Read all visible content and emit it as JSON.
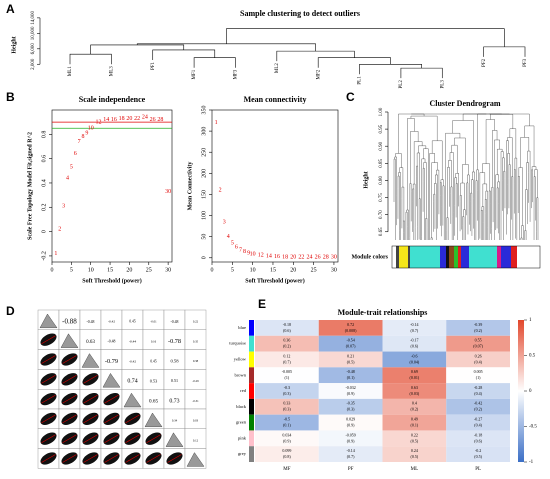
{
  "chart_data": [
    {
      "type": "dendrogram",
      "panel": "A",
      "title": "Sample clustering to detect outliers",
      "ylabel": "Height",
      "ylim": [
        0,
        15000
      ],
      "yticks": [
        {
          "value": 2000,
          "label": "2,000"
        },
        {
          "value": 6000,
          "label": "6,000"
        },
        {
          "value": 10000,
          "label": "10,000"
        },
        {
          "value": 14000,
          "label": "14,000"
        }
      ],
      "leaves": [
        "ML1",
        "ML3",
        "PF1",
        "MF1",
        "MF3",
        "ML2",
        "MF2",
        "PL1",
        "PL2",
        "PL3",
        "PF2",
        "PF3"
      ],
      "merges": [
        [
          -9,
          -10,
          1000
        ],
        [
          -8,
          1,
          2000
        ],
        [
          -7,
          2,
          3700
        ],
        [
          -6,
          3,
          5400
        ],
        [
          -4,
          -5,
          3700
        ],
        [
          -3,
          5,
          5700
        ],
        [
          -1,
          -2,
          4600
        ],
        [
          7,
          6,
          7000
        ],
        [
          8,
          4,
          7300
        ],
        [
          -11,
          -12,
          6500
        ],
        [
          9,
          10,
          11200
        ]
      ]
    },
    {
      "type": "text-scatter",
      "panel": "B",
      "title": "Scale independence",
      "xlabel": "Soft Threshold (power)",
      "ylabel": "Scale Free Topology Model Fit,signed R^2",
      "x": [
        1,
        2,
        3,
        4,
        5,
        6,
        7,
        8,
        9,
        10,
        12,
        14,
        16,
        18,
        20,
        22,
        24,
        26,
        28,
        30
      ],
      "values": [
        -0.18,
        0.02,
        0.21,
        0.44,
        0.53,
        0.64,
        0.74,
        0.78,
        0.81,
        0.85,
        0.9,
        0.92,
        0.92,
        0.93,
        0.93,
        0.93,
        0.94,
        0.92,
        0.92,
        0.33
      ],
      "color": "#e00000",
      "xlim": [
        0,
        31
      ],
      "xticks": [
        0,
        5,
        10,
        15,
        20,
        25,
        30
      ],
      "ylim": [
        -0.25,
        1.0
      ],
      "yticks": [
        -0.2,
        0,
        0.2,
        0.4,
        0.6,
        0.8
      ],
      "hlines": [
        {
          "value": 0.9,
          "color": "#e00000"
        },
        {
          "value": 0.85,
          "color": "#22b022"
        }
      ]
    },
    {
      "type": "text-scatter",
      "title": "Mean connectivity",
      "xlabel": "Soft Threshold (power)",
      "ylabel": "Mean Connectivity",
      "x": [
        1,
        2,
        3,
        4,
        5,
        6,
        7,
        8,
        9,
        10,
        12,
        14,
        16,
        18,
        20,
        22,
        24,
        26,
        28,
        30
      ],
      "values": [
        320,
        160,
        85,
        50,
        35,
        25,
        18,
        14,
        11,
        9,
        6,
        4,
        3,
        2,
        2,
        1,
        1,
        1,
        1,
        1
      ],
      "color": "#e00000",
      "xlim": [
        0,
        31
      ],
      "xticks": [
        0,
        5,
        10,
        15,
        20,
        25,
        30
      ],
      "ylim": [
        -10,
        350
      ],
      "yticks": [
        0,
        50,
        100,
        150,
        200,
        250,
        300,
        350
      ]
    },
    {
      "type": "gene-dendrogram",
      "panel": "C",
      "title": "Cluster Dendrogram",
      "ylabel": "Height",
      "strip_label": "Module colors",
      "ylim": [
        0.62,
        1.0
      ],
      "yticks": [
        0.65,
        {
          "value": 0.7,
          "label": "0.70"
        },
        0.75,
        {
          "value": 0.8,
          "label": "0.80"
        },
        0.85,
        {
          "value": 0.9,
          "label": "0.90"
        },
        0.95,
        {
          "value": 1.0,
          "label": "1.00"
        }
      ]
    },
    {
      "type": "correlation-matrix",
      "panel": "D",
      "upper": [
        [
          null,
          -0.88,
          -0.48,
          -0.42,
          0.45,
          -0.01,
          -0.48,
          0.22
        ],
        [
          null,
          null,
          0.63,
          -0.48,
          -0.44,
          0.16,
          -0.78,
          0.35
        ],
        [
          null,
          null,
          null,
          -0.79,
          -0.42,
          0.45,
          0.58,
          0.38
        ],
        [
          null,
          null,
          null,
          null,
          0.74,
          0.53,
          0.51,
          -0.29
        ],
        [
          null,
          null,
          null,
          null,
          null,
          0.65,
          0.73,
          -0.31
        ],
        [
          null,
          null,
          null,
          null,
          null,
          null,
          0.34,
          0.03
        ],
        [
          null,
          null,
          null,
          null,
          null,
          null,
          null,
          0.12
        ],
        [
          null,
          null,
          null,
          null,
          null,
          null,
          null,
          null
        ]
      ]
    },
    {
      "type": "heatmap",
      "panel": "E",
      "title": "Module-trait relationships",
      "rows": [
        "blue",
        "turquoise",
        "yellow",
        "brown",
        "red",
        "black",
        "green",
        "pink",
        "grey"
      ],
      "columns": [
        "MF",
        "PF",
        "ML",
        "PL"
      ],
      "values": [
        [
          -0.18,
          0.72,
          -0.14,
          -0.39
        ],
        [
          0.36,
          -0.54,
          -0.17,
          0.55
        ],
        [
          0.12,
          0.21,
          -0.6,
          0.26
        ],
        [
          -0.005,
          -0.48,
          0.69,
          0.005
        ],
        [
          -0.3,
          -0.032,
          0.63,
          -0.28
        ],
        [
          0.33,
          -0.35,
          0.4,
          -0.42
        ],
        [
          -0.5,
          0.029,
          0.49,
          -0.27
        ],
        [
          0.034,
          -0.059,
          0.22,
          -0.18
        ],
        [
          0.099,
          -0.14,
          0.24,
          -0.2
        ]
      ],
      "p_labels": [
        [
          "(0.6)",
          "(0.008)",
          "(0.7)",
          "(0.2)"
        ],
        [
          "(0.2)",
          "(0.07)",
          "(0.6)",
          "(0.07)"
        ],
        [
          "(0.7)",
          "(0.5)",
          "(0.04)",
          "(0.4)"
        ],
        [
          "(1)",
          "(0.1)",
          "(0.01)",
          "(1)"
        ],
        [
          "(0.3)",
          "(0.9)",
          "(0.03)",
          "(0.4)"
        ],
        [
          "(0.3)",
          "(0.3)",
          "(0.2)",
          "(0.2)"
        ],
        [
          "(0.1)",
          "(0.9)",
          "(0.1)",
          "(0.4)"
        ],
        [
          "(0.9)",
          "(0.9)",
          "(0.5)",
          "(0.6)"
        ],
        [
          "(0.8)",
          "(0.7)",
          "(0.5)",
          "(0.5)"
        ]
      ],
      "clim": [
        -1,
        1
      ],
      "cticks": [
        -1,
        -0.5,
        0,
        0.5,
        1
      ],
      "low_color": "#3b6fc6",
      "mid_color": "#ffffff",
      "high_color": "#e2472c"
    }
  ]
}
